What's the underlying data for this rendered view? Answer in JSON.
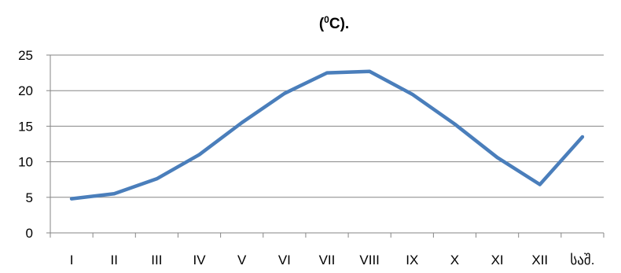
{
  "chart_data": {
    "type": "line",
    "title_prefix": "(",
    "title_sup": "0",
    "title_suffix": "C).",
    "xlabel": "",
    "ylabel": "",
    "categories": [
      "I",
      "II",
      "III",
      "IV",
      "V",
      "VI",
      "VII",
      "VIII",
      "IX",
      "X",
      "XI",
      "XII",
      "საშ."
    ],
    "series": [
      {
        "values": [
          4.8,
          5.5,
          7.6,
          11.0,
          15.5,
          19.6,
          22.5,
          22.7,
          19.5,
          15.3,
          10.6,
          6.8,
          13.5
        ]
      }
    ],
    "ylim": [
      0,
      25
    ],
    "yticks": [
      0,
      5,
      10,
      15,
      20,
      25
    ],
    "grid": true,
    "line_color": "#4a7ebb"
  }
}
